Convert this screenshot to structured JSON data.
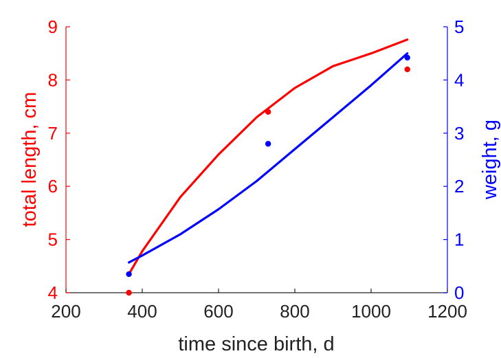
{
  "chart_data": {
    "type": "scatter",
    "xlabel": "time since birth, d",
    "ylabel_left": "total length, cm",
    "ylabel_right": "weight, g",
    "xlim": [
      200,
      1200
    ],
    "ylim_left": [
      4,
      9
    ],
    "ylim_right": [
      0,
      5
    ],
    "xticks": [
      "200",
      "400",
      "600",
      "800",
      "1000",
      "1200"
    ],
    "yticks_left": [
      "4",
      "5",
      "6",
      "7",
      "8",
      "9"
    ],
    "yticks_right": [
      "0",
      "1",
      "2",
      "3",
      "4",
      "5"
    ],
    "grid": false,
    "colors": {
      "length": "#ff0000",
      "weight": "#0000ff",
      "axis": "#000000"
    },
    "series": [
      {
        "axis": "left",
        "color": "#ff0000",
        "points": [
          [
            365,
            4.0
          ],
          [
            730,
            7.4
          ],
          [
            1095,
            8.2
          ]
        ],
        "fit": [
          [
            365,
            4.35
          ],
          [
            400,
            4.78
          ],
          [
            500,
            5.8
          ],
          [
            600,
            6.6
          ],
          [
            700,
            7.3
          ],
          [
            800,
            7.85
          ],
          [
            900,
            8.26
          ],
          [
            1000,
            8.5
          ],
          [
            1095,
            8.76
          ]
        ]
      },
      {
        "axis": "right",
        "color": "#0000ff",
        "points": [
          [
            365,
            0.35
          ],
          [
            730,
            2.8
          ],
          [
            1095,
            4.42
          ]
        ],
        "fit": [
          [
            365,
            0.57
          ],
          [
            400,
            0.7
          ],
          [
            500,
            1.1
          ],
          [
            600,
            1.57
          ],
          [
            700,
            2.1
          ],
          [
            800,
            2.7
          ],
          [
            900,
            3.3
          ],
          [
            1000,
            3.9
          ],
          [
            1095,
            4.5
          ]
        ]
      }
    ]
  }
}
